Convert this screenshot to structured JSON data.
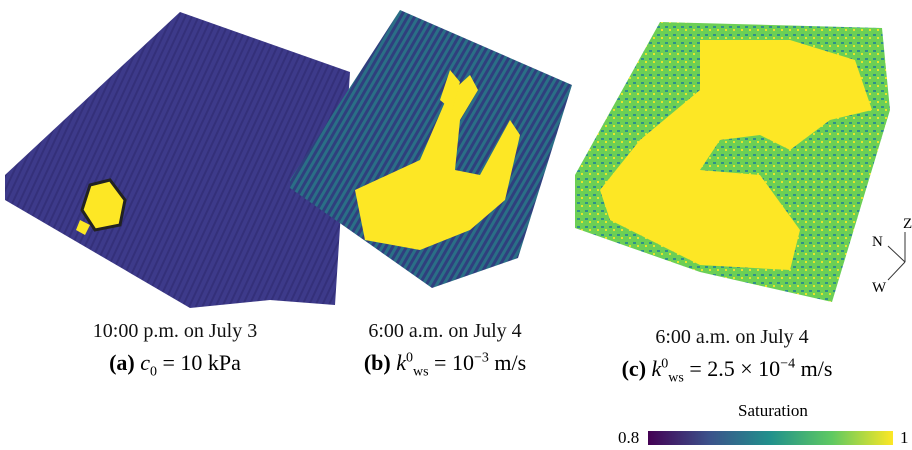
{
  "panels": [
    {
      "time": "10:00 p.m. on July 3",
      "label": "(a)",
      "formula": {
        "base": "c",
        "sub": "0",
        "rest": "= 10 kPa"
      }
    },
    {
      "time": "6:00 a.m. on July 4",
      "label": "(b)",
      "formula": {
        "base": "k",
        "sup": "0",
        "sub": "ws",
        "rest": "= 10",
        "exp": "−3",
        "unit": "m/s"
      }
    },
    {
      "time": "6:00 a.m. on July 4",
      "label": "(c)",
      "formula": {
        "base": "k",
        "sup": "0",
        "sub": "ws",
        "rest": "= 2.5 × 10",
        "exp": "−4",
        "unit": "m/s"
      }
    }
  ],
  "compass": {
    "north": "N",
    "west": "W",
    "up": "Z"
  },
  "colorbar": {
    "title": "Saturation",
    "min": "0.8",
    "max": "1"
  }
}
